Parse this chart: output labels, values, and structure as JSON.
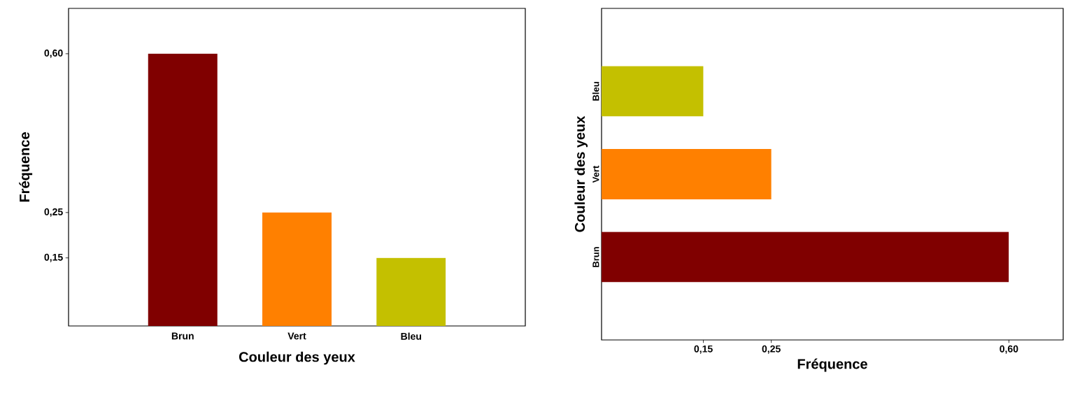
{
  "chart_data": [
    {
      "type": "bar",
      "xlabel": "Couleur des yeux",
      "ylabel": "Fréquence",
      "categories": [
        "Brun",
        "Vert",
        "Bleu"
      ],
      "values": [
        0.6,
        0.25,
        0.15
      ],
      "colors": [
        "#800000",
        "#ff8000",
        "#c4c000"
      ],
      "ylim": [
        0,
        0.7
      ],
      "yticks": [
        {
          "value": 0.15,
          "label": "0,15"
        },
        {
          "value": 0.25,
          "label": "0,25"
        },
        {
          "value": 0.6,
          "label": "0,60"
        }
      ],
      "grid": false
    },
    {
      "type": "bar",
      "orientation": "horizontal",
      "xlabel": "Fréquence",
      "ylabel": "Couleur des yeux",
      "categories": [
        "Bleu",
        "Vert",
        "Brun"
      ],
      "values": [
        0.15,
        0.25,
        0.6
      ],
      "colors": [
        "#c4c000",
        "#ff8000",
        "#800000"
      ],
      "xlim": [
        0,
        0.68
      ],
      "xticks": [
        {
          "value": 0.15,
          "label": "0,15"
        },
        {
          "value": 0.25,
          "label": "0,25"
        },
        {
          "value": 0.6,
          "label": "0,60"
        }
      ],
      "grid": false
    }
  ]
}
